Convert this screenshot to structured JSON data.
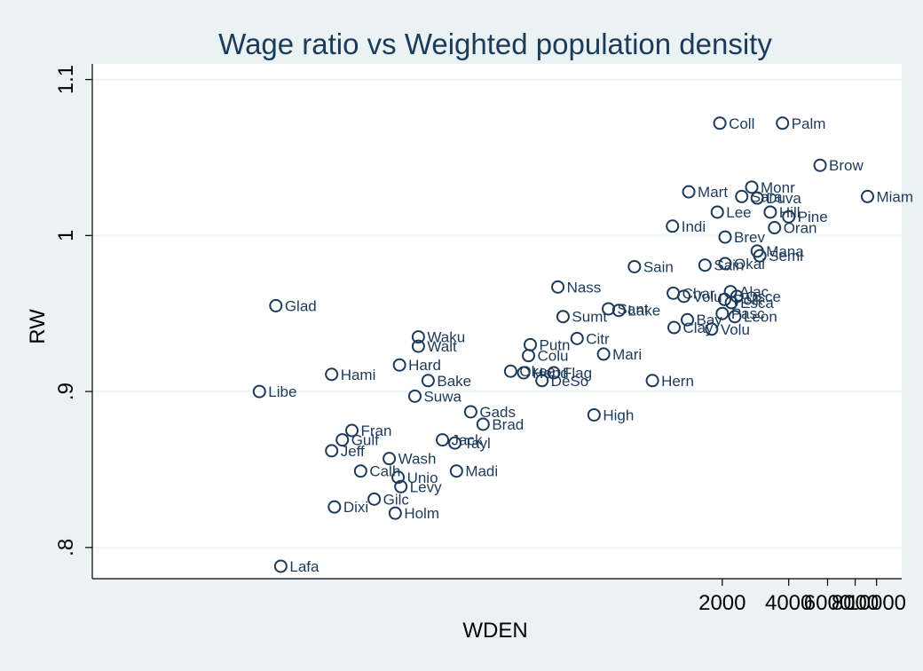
{
  "chart_data": {
    "type": "scatter",
    "title": "Wage ratio vs Weighted population density",
    "xlabel": "WDEN",
    "ylabel": "RW",
    "x_scale": "log",
    "x_ticks": [
      {
        "value": 2000,
        "label": "2000"
      },
      {
        "value": 4000,
        "label": "4000"
      },
      {
        "value": 6000,
        "label": "6000"
      },
      {
        "value": 8000,
        "label": "8000"
      },
      {
        "value": 10000,
        "label": "10000"
      }
    ],
    "y_ticks": [
      {
        "value": 0.8,
        "label": ".8"
      },
      {
        "value": 0.9,
        "label": ".9"
      },
      {
        "value": 1.0,
        "label": "1"
      },
      {
        "value": 1.1,
        "label": "1.1"
      }
    ],
    "xlim": [
      2.8,
      13000
    ],
    "ylim": [
      0.78,
      1.11
    ],
    "grid": "horizontal",
    "marker_color": "#1c3a5a",
    "background_color": "#eaf2f3",
    "plot_background_color": "#ffffff",
    "points": [
      {
        "label": "Coll",
        "x": 1950,
        "y": 1.072
      },
      {
        "label": "Palm",
        "x": 3750,
        "y": 1.072
      },
      {
        "label": "Brow",
        "x": 5550,
        "y": 1.045
      },
      {
        "label": "Miam",
        "x": 9100,
        "y": 1.025
      },
      {
        "label": "Mart",
        "x": 1410,
        "y": 1.028
      },
      {
        "label": "Monr",
        "x": 2720,
        "y": 1.031
      },
      {
        "label": "Sara",
        "x": 2450,
        "y": 1.025
      },
      {
        "label": "Duva",
        "x": 2880,
        "y": 1.024
      },
      {
        "label": "Lee",
        "x": 1900,
        "y": 1.015
      },
      {
        "label": "Hill",
        "x": 3300,
        "y": 1.015
      },
      {
        "label": "Pine",
        "x": 4000,
        "y": 1.012
      },
      {
        "label": "Indi",
        "x": 1190,
        "y": 1.006
      },
      {
        "label": "Oran",
        "x": 3450,
        "y": 1.005
      },
      {
        "label": "Brev",
        "x": 2060,
        "y": 0.999
      },
      {
        "label": "Mana",
        "x": 2880,
        "y": 0.99
      },
      {
        "label": "Semi",
        "x": 2960,
        "y": 0.987
      },
      {
        "label": "Sain",
        "x": 800,
        "y": 0.98
      },
      {
        "label": "Sain",
        "x": 1670,
        "y": 0.981
      },
      {
        "label": "Okal",
        "x": 2060,
        "y": 0.982
      },
      {
        "label": "Nass",
        "x": 360,
        "y": 0.967
      },
      {
        "label": "Alac",
        "x": 2180,
        "y": 0.964
      },
      {
        "label": "Char",
        "x": 1200,
        "y": 0.963
      },
      {
        "label": "Osce",
        "x": 2330,
        "y": 0.961
      },
      {
        "label": "Volu",
        "x": 1340,
        "y": 0.961
      },
      {
        "label": "Polk",
        "x": 2050,
        "y": 0.959
      },
      {
        "label": "Esca",
        "x": 2200,
        "y": 0.957
      },
      {
        "label": "Sant",
        "x": 610,
        "y": 0.953
      },
      {
        "label": "Lake",
        "x": 680,
        "y": 0.952
      },
      {
        "label": "Pasc",
        "x": 2000,
        "y": 0.95
      },
      {
        "label": "Sumt",
        "x": 380,
        "y": 0.948
      },
      {
        "label": "Leon",
        "x": 2280,
        "y": 0.948
      },
      {
        "label": "Bay",
        "x": 1390,
        "y": 0.946
      },
      {
        "label": "Clay",
        "x": 1210,
        "y": 0.941
      },
      {
        "label": "Volu",
        "x": 1790,
        "y": 0.94
      },
      {
        "label": "Citr",
        "x": 440,
        "y": 0.934
      },
      {
        "label": "Waku",
        "x": 84,
        "y": 0.935
      },
      {
        "label": "Walt",
        "x": 84,
        "y": 0.929
      },
      {
        "label": "Putn",
        "x": 270,
        "y": 0.93
      },
      {
        "label": "Mari",
        "x": 580,
        "y": 0.924
      },
      {
        "label": "Colu",
        "x": 265,
        "y": 0.923
      },
      {
        "label": "Hard",
        "x": 69,
        "y": 0.917
      },
      {
        "label": "Flag",
        "x": 345,
        "y": 0.912
      },
      {
        "label": "Okee",
        "x": 220,
        "y": 0.913
      },
      {
        "label": "Hend",
        "x": 252,
        "y": 0.912
      },
      {
        "label": "DeSo",
        "x": 305,
        "y": 0.907
      },
      {
        "label": "Hami",
        "x": 34,
        "y": 0.911
      },
      {
        "label": "Bake",
        "x": 93,
        "y": 0.907
      },
      {
        "label": "Hern",
        "x": 965,
        "y": 0.907
      },
      {
        "label": "Libe",
        "x": 16,
        "y": 0.9
      },
      {
        "label": "Glad",
        "x": 19,
        "y": 0.955
      },
      {
        "label": "Suwa",
        "x": 81,
        "y": 0.897
      },
      {
        "label": "Gads",
        "x": 145,
        "y": 0.887
      },
      {
        "label": "High",
        "x": 525,
        "y": 0.885
      },
      {
        "label": "Brad",
        "x": 165,
        "y": 0.879
      },
      {
        "label": "Fran",
        "x": 42,
        "y": 0.875
      },
      {
        "label": "Gulf",
        "x": 38,
        "y": 0.869
      },
      {
        "label": "Jack",
        "x": 108,
        "y": 0.869
      },
      {
        "label": "Tayl",
        "x": 123,
        "y": 0.867
      },
      {
        "label": "Jeff",
        "x": 34,
        "y": 0.862
      },
      {
        "label": "Wash",
        "x": 62,
        "y": 0.857
      },
      {
        "label": "Calh",
        "x": 46,
        "y": 0.849
      },
      {
        "label": "Madi",
        "x": 125,
        "y": 0.849
      },
      {
        "label": "Unio",
        "x": 68,
        "y": 0.845
      },
      {
        "label": "Levy",
        "x": 70,
        "y": 0.839
      },
      {
        "label": "Gilc",
        "x": 53,
        "y": 0.831
      },
      {
        "label": "Dixi",
        "x": 35,
        "y": 0.826
      },
      {
        "label": "Holm",
        "x": 66,
        "y": 0.822
      },
      {
        "label": "Lafa",
        "x": 20,
        "y": 0.788
      }
    ]
  }
}
